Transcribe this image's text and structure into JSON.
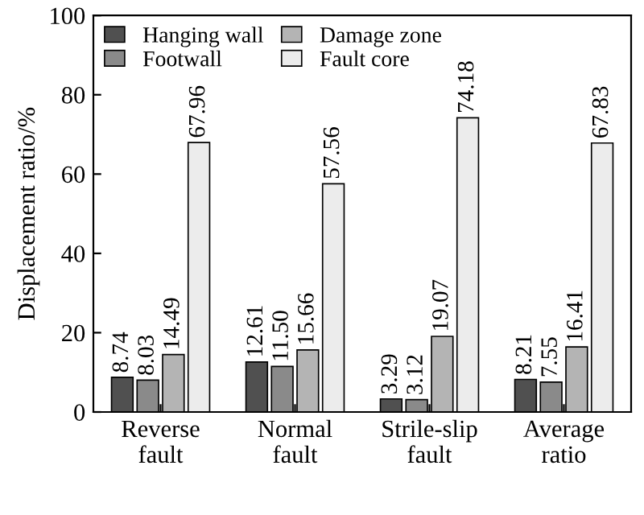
{
  "chart_data": {
    "type": "bar",
    "ylabel": "Displacement ratio/%",
    "categories": [
      "Reverse\nfault",
      "Normal\nfault",
      "Strile-slip\nfault",
      "Average\nratio"
    ],
    "series": [
      {
        "name": "Hanging wall",
        "color": "#505050",
        "values": [
          8.74,
          12.61,
          3.29,
          8.21
        ],
        "value_labels": [
          "8.74",
          "12.61",
          "3.29",
          "8.21"
        ]
      },
      {
        "name": "Footwall",
        "color": "#8a8a8a",
        "values": [
          8.03,
          11.5,
          3.12,
          7.55
        ],
        "value_labels": [
          "8.03",
          "11.50",
          "3.12",
          "7.55"
        ]
      },
      {
        "name": "Damage zone",
        "color": "#b4b4b4",
        "values": [
          14.49,
          15.66,
          19.07,
          16.41
        ],
        "value_labels": [
          "14.49",
          "15.66",
          "19.07",
          "16.41"
        ]
      },
      {
        "name": "Fault core",
        "color": "#ececec",
        "values": [
          67.96,
          57.56,
          74.18,
          67.83
        ],
        "value_labels": [
          "67.96",
          "57.56",
          "74.18",
          "67.83"
        ]
      }
    ],
    "ylim": [
      0,
      100
    ],
    "yticks": [
      0,
      20,
      40,
      60,
      80,
      100
    ],
    "grid": false,
    "legend": "top left"
  }
}
